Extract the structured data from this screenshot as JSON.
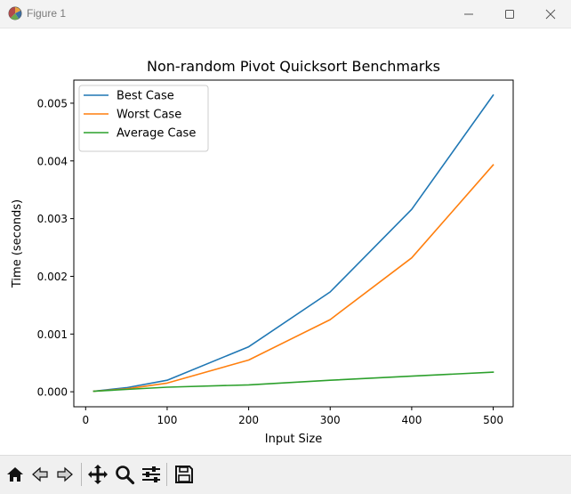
{
  "window": {
    "title": "Figure 1",
    "icons": {
      "app": "matplotlib-figure-icon",
      "minimize": "minimize-icon",
      "maximize": "maximize-icon",
      "close": "close-icon"
    }
  },
  "toolbar": {
    "buttons": [
      {
        "icon": "home-icon"
      },
      {
        "icon": "back-arrow-icon"
      },
      {
        "icon": "forward-arrow-icon"
      },
      {
        "icon": "pan-move-icon"
      },
      {
        "icon": "zoom-magnifier-icon"
      },
      {
        "icon": "configure-subplots-icon"
      },
      {
        "icon": "save-floppy-icon"
      }
    ]
  },
  "chart_data": {
    "type": "line",
    "title": "Non-random Pivot Quicksort Benchmarks",
    "xlabel": "Input Size",
    "ylabel": "Time (seconds)",
    "xlim": [
      -14.5,
      524.5
    ],
    "ylim": [
      -0.00026,
      0.0054
    ],
    "xticks": [
      0,
      100,
      200,
      300,
      400,
      500
    ],
    "yticks": [
      0.0,
      0.001,
      0.002,
      0.003,
      0.004,
      0.005
    ],
    "ytick_labels": [
      "0.000",
      "0.001",
      "0.002",
      "0.003",
      "0.004",
      "0.005"
    ],
    "x": [
      10,
      50,
      100,
      200,
      300,
      400,
      500
    ],
    "series": [
      {
        "name": "Best Case",
        "color": "#1f77b4",
        "values": [
          1e-05,
          7e-05,
          0.0002,
          0.00078,
          0.00173,
          0.00316,
          0.00514
        ]
      },
      {
        "name": "Worst Case",
        "color": "#ff7f0e",
        "values": [
          1e-05,
          5e-05,
          0.00015,
          0.00055,
          0.00125,
          0.00232,
          0.00393
        ]
      },
      {
        "name": "Average Case",
        "color": "#2ca02c",
        "values": [
          1e-05,
          4e-05,
          8e-05,
          0.00012,
          0.0002,
          0.00027,
          0.00034
        ]
      }
    ],
    "legend": "upper left",
    "grid": false
  }
}
